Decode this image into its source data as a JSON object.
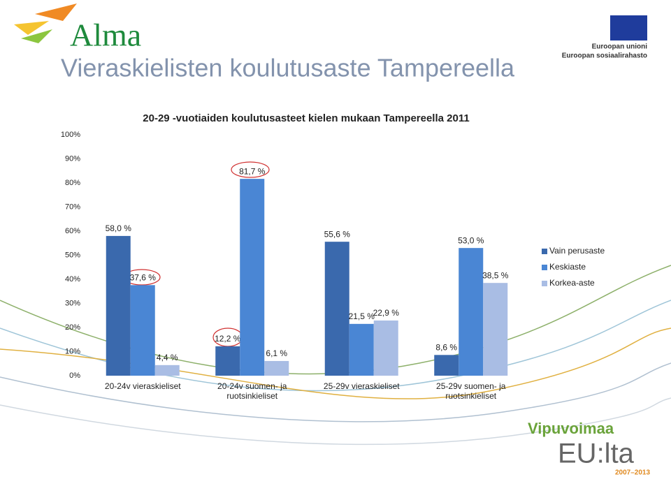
{
  "slide": {
    "title": "Vieraskielisten koulutusaste Tampereella",
    "logo_left": "Alma",
    "logo_right": [
      "Euroopan unioni",
      "Euroopan sosiaalirahasto"
    ],
    "logo_bottom": [
      "Vipuvoimaa",
      "EU:lta",
      "2007–2013"
    ]
  },
  "chart_data": {
    "type": "bar",
    "title": "20-29 -vuotiaiden koulutusasteet kielen mukaan Tampereella 2011",
    "categories": [
      "20-24v vieraskieliset",
      "20-24v suomen- ja ruotsinkieliset",
      "25-29v vieraskieliset",
      "25-29v suomen- ja ruotsinkieliset"
    ],
    "series": [
      {
        "name": "Vain perusaste",
        "color": "#3a69ad",
        "values": [
          58.0,
          12.2,
          55.6,
          8.6
        ],
        "value_labels": [
          "58,0 %",
          "12,2 %",
          "55,6 %",
          "8,6 %"
        ]
      },
      {
        "name": "Keskiaste",
        "color": "#4a86d4",
        "values": [
          37.6,
          81.7,
          21.5,
          53.0
        ],
        "value_labels": [
          "37,6 %",
          "81,7 %",
          "21,5 %",
          "53,0 %"
        ]
      },
      {
        "name": "Korkea-aste",
        "color": "#a9bde4",
        "values": [
          4.4,
          6.1,
          22.9,
          38.5
        ],
        "value_labels": [
          "4,4 %",
          "6,1 %",
          "22,9 %",
          "38,5 %"
        ]
      }
    ],
    "ylim": [
      0,
      100
    ],
    "yticks": [
      {
        "value": 0,
        "label": "0%"
      },
      {
        "value": 10,
        "label": "10%"
      },
      {
        "value": 20,
        "label": "20%"
      },
      {
        "value": 30,
        "label": "30%"
      },
      {
        "value": 40,
        "label": "40%"
      },
      {
        "value": 50,
        "label": "50%"
      },
      {
        "value": 60,
        "label": "60%"
      },
      {
        "value": 70,
        "label": "70%"
      },
      {
        "value": 80,
        "label": "80%"
      },
      {
        "value": 90,
        "label": "90%"
      },
      {
        "value": 100,
        "label": "100%"
      }
    ],
    "grid": false,
    "legend": "right"
  }
}
